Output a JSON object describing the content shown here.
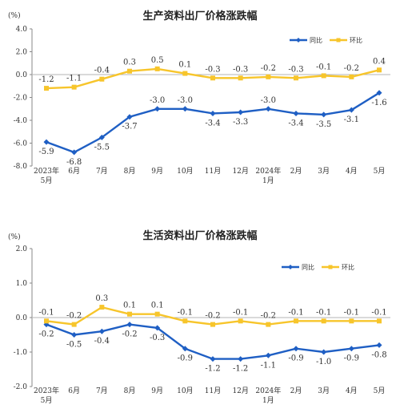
{
  "chart_data": [
    {
      "type": "line",
      "title": "生产资料出厂价格涨跌幅",
      "unit": "(%)",
      "categories": [
        "2023年\n5月",
        "6月",
        "7月",
        "8月",
        "9月",
        "10月",
        "11月",
        "12月",
        "2024年\n1月",
        "2月",
        "3月",
        "4月",
        "5月"
      ],
      "ylim": [
        -8.0,
        4.0
      ],
      "yticks": [
        "4.0",
        "2.0",
        "0.0",
        "-2.0",
        "-4.0",
        "-6.0",
        "-8.0"
      ],
      "grid": false,
      "legend_position": "top-right",
      "series": [
        {
          "name": "同比",
          "color": "#1f5fc4",
          "values": [
            -5.9,
            -6.8,
            -5.5,
            -3.7,
            -3.0,
            -3.0,
            -3.4,
            -3.3,
            -3.0,
            -3.4,
            -3.5,
            -3.1,
            -1.6
          ],
          "labels": [
            "-5.9",
            "-6.8",
            "-5.5",
            "-3.7",
            "-3.0",
            "-3.0",
            "-3.4",
            "-3.3",
            "-3.0",
            "-3.4",
            "-3.5",
            "-3.1",
            "-1.6"
          ]
        },
        {
          "name": "环比",
          "color": "#f7c52b",
          "values": [
            -1.2,
            -1.1,
            -0.4,
            0.3,
            0.5,
            0.1,
            -0.3,
            -0.3,
            -0.2,
            -0.3,
            -0.1,
            -0.2,
            0.4
          ],
          "labels": [
            "-1.2",
            "-1.1",
            "-0.4",
            "0.3",
            "0.5",
            "0.1",
            "-0.3",
            "-0.3",
            "-0.2",
            "-0.3",
            "-0.1",
            "-0.2",
            "0.4"
          ]
        }
      ]
    },
    {
      "type": "line",
      "title": "生活资料出厂价格涨跌幅",
      "unit": "(%)",
      "categories": [
        "2023年\n5月",
        "6月",
        "7月",
        "8月",
        "9月",
        "10月",
        "11月",
        "12月",
        "2024年\n1月",
        "2月",
        "3月",
        "4月",
        "5月"
      ],
      "ylim": [
        -2.0,
        2.0
      ],
      "yticks": [
        "2.0",
        "1.0",
        "0.0",
        "-1.0",
        "-2.0"
      ],
      "grid": false,
      "legend_position": "top-right",
      "series": [
        {
          "name": "同比",
          "color": "#1f5fc4",
          "values": [
            -0.2,
            -0.5,
            -0.4,
            -0.2,
            -0.3,
            -0.9,
            -1.2,
            -1.2,
            -1.1,
            -0.9,
            -1.0,
            -0.9,
            -0.8
          ],
          "labels": [
            "-0.2",
            "-0.5",
            "-0.4",
            "-0.2",
            "-0.3",
            "-0.9",
            "-1.2",
            "-1.2",
            "-1.1",
            "-0.9",
            "-1.0",
            "-0.9",
            "-0.8"
          ]
        },
        {
          "name": "环比",
          "color": "#f7c52b",
          "values": [
            -0.1,
            -0.2,
            0.3,
            0.1,
            0.1,
            -0.1,
            -0.2,
            -0.1,
            -0.2,
            -0.1,
            -0.1,
            -0.1,
            -0.1
          ],
          "labels": [
            "-0.1",
            "-0.2",
            "0.3",
            "0.1",
            "0.1",
            "-0.1",
            "-0.2",
            "-0.1",
            "-0.2",
            "-0.1",
            "-0.1",
            "-0.1",
            "-0.1"
          ]
        }
      ]
    }
  ]
}
